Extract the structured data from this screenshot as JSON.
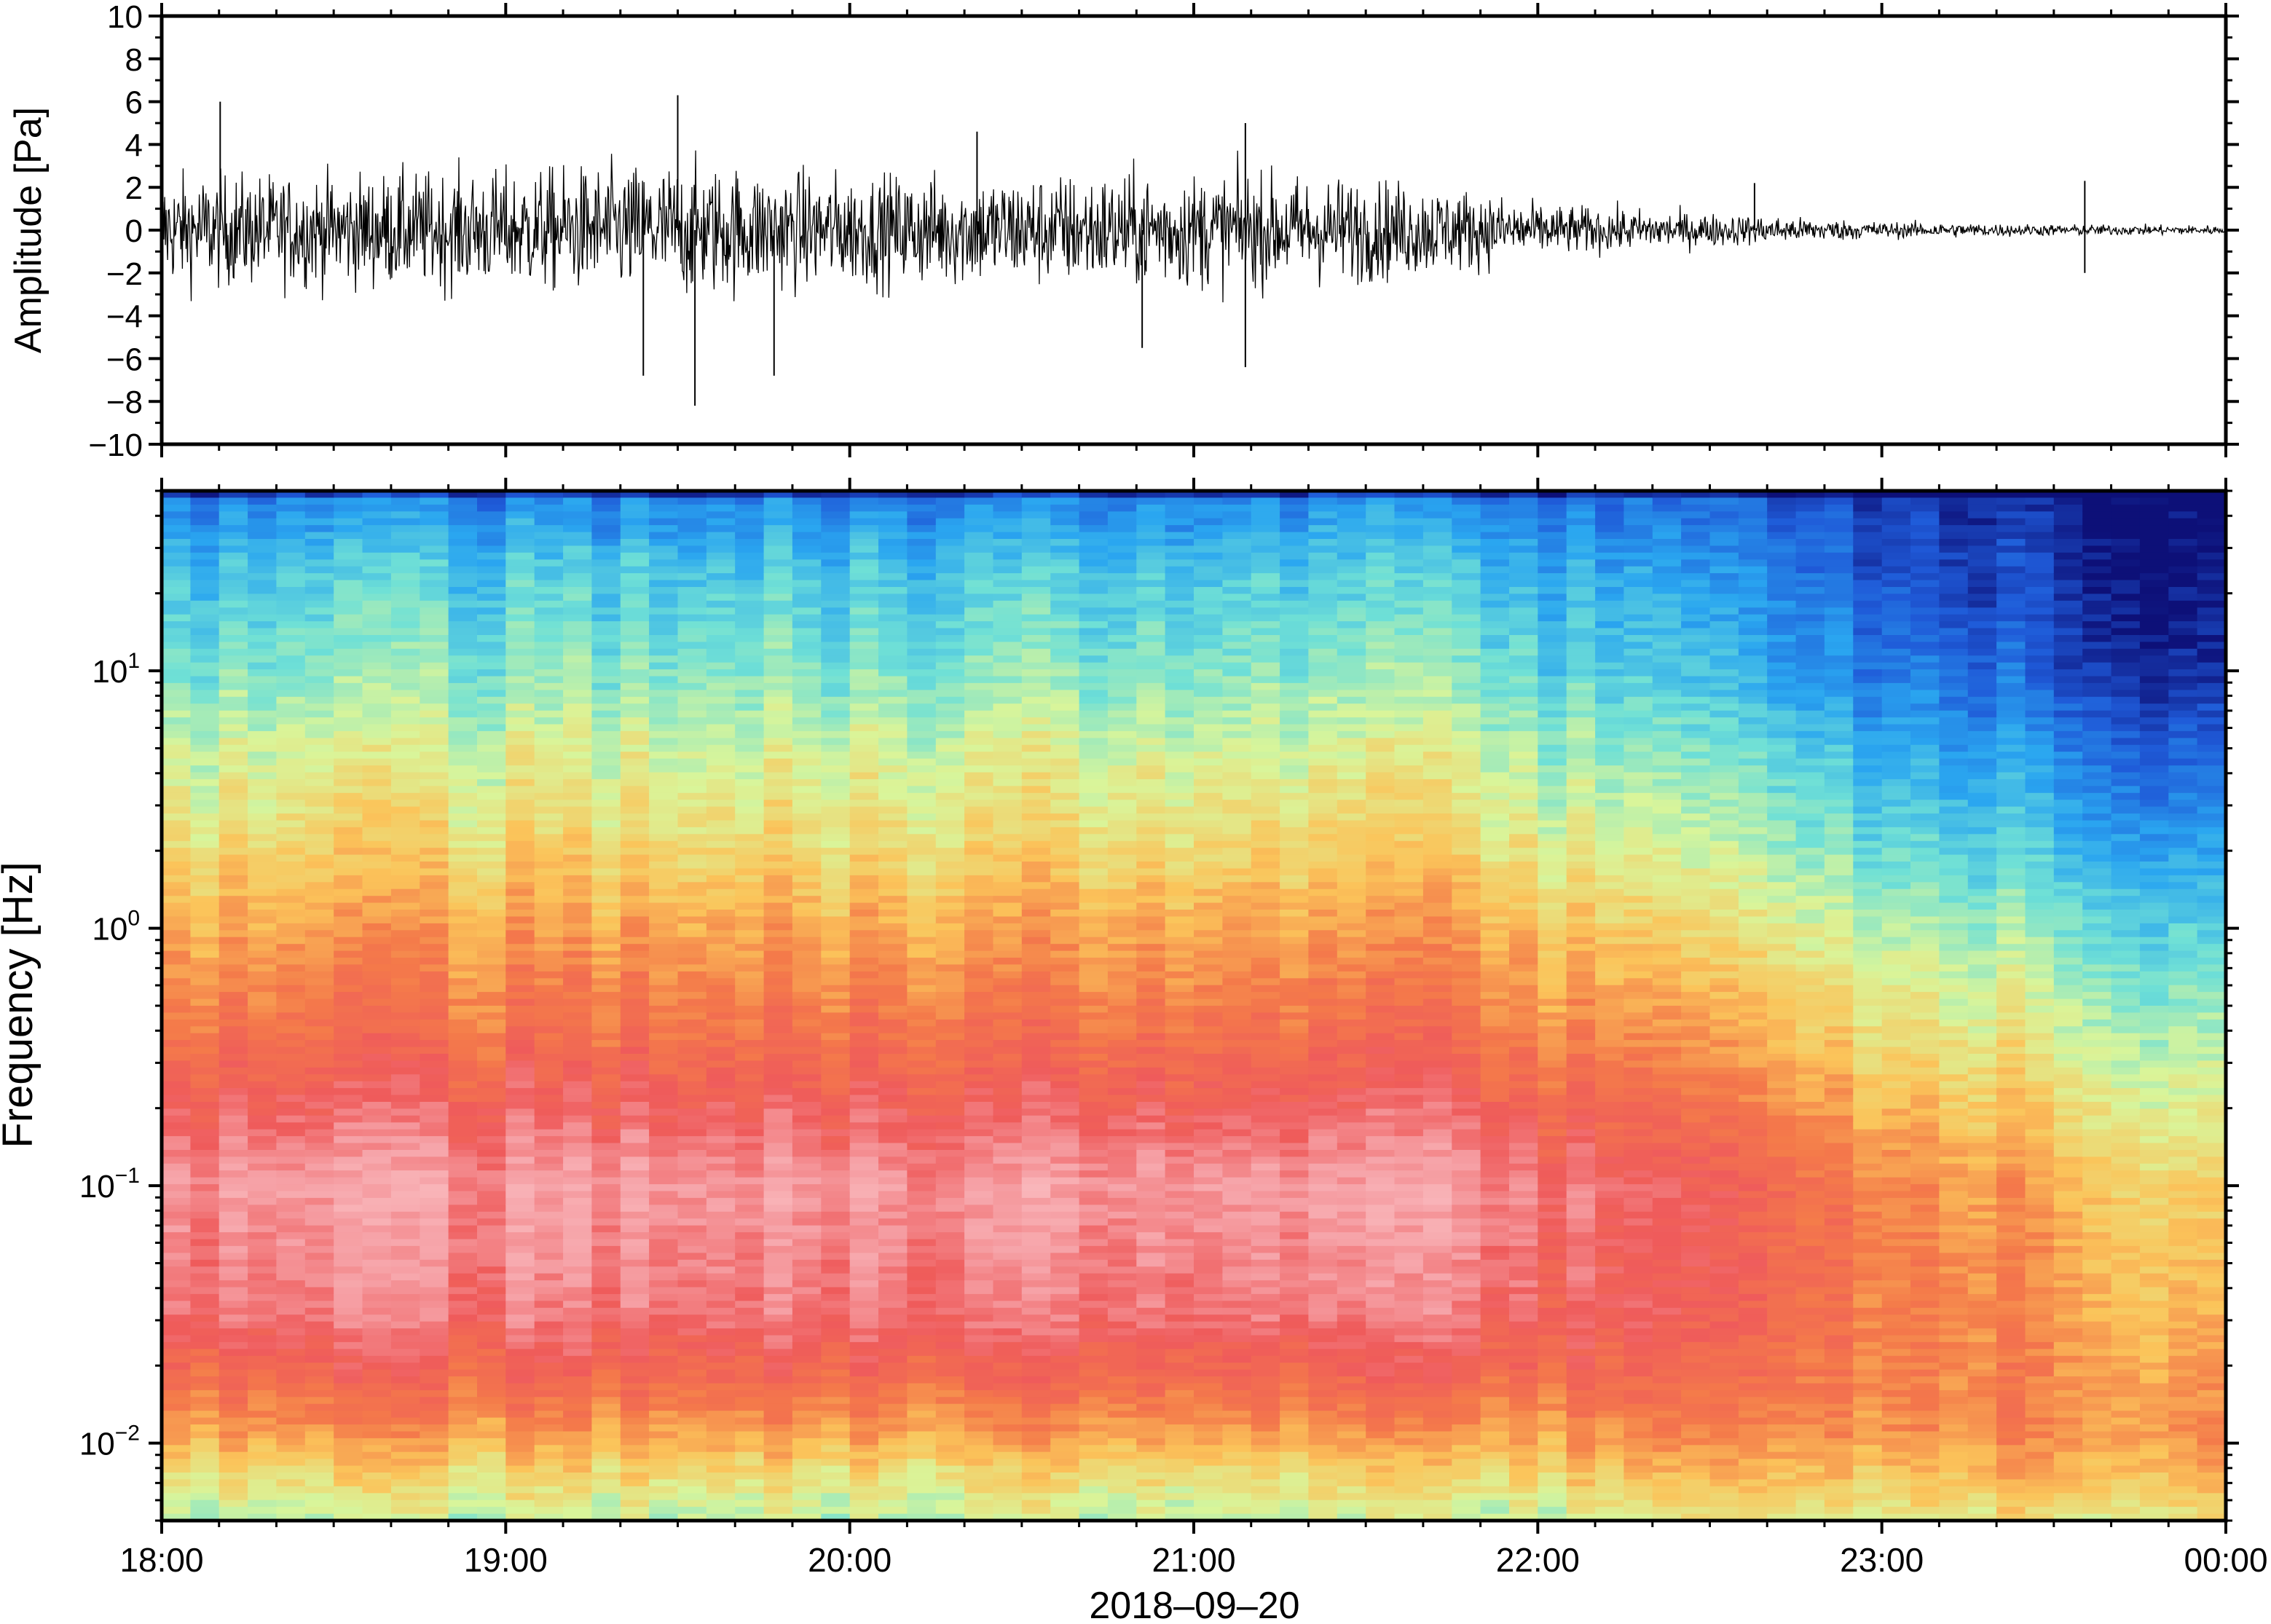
{
  "chart_data": [
    {
      "type": "line",
      "description_panel": "waveform",
      "ylabel": "Amplitude [Pa]",
      "ylim": [
        -10,
        10
      ],
      "y_ticks": [
        -10,
        -8,
        -6,
        -4,
        -2,
        0,
        2,
        4,
        6,
        8,
        10
      ],
      "y_tick_labels": [
        "−10",
        "−8",
        "−6",
        "−4",
        "−2",
        "0",
        "2",
        "4",
        "6",
        "8",
        "10"
      ],
      "x_range_hours": [
        18,
        24
      ],
      "envelope": {
        "time_hours": [
          18.0,
          18.5,
          19.0,
          19.5,
          20.0,
          20.5,
          21.0,
          21.5,
          21.8,
          22.0,
          22.5,
          23.0,
          23.5,
          24.0
        ],
        "amplitude_pa": [
          3.0,
          3.0,
          3.2,
          3.6,
          3.0,
          3.0,
          3.1,
          2.8,
          2.2,
          1.4,
          0.9,
          0.45,
          0.3,
          0.25
        ]
      },
      "peaks": [
        {
          "time_hours": 18.17,
          "value": 6.0
        },
        {
          "time_hours": 19.5,
          "value": 6.3
        },
        {
          "time_hours": 19.55,
          "value": -8.2
        },
        {
          "time_hours": 19.4,
          "value": -6.8
        },
        {
          "time_hours": 19.78,
          "value": -6.8
        },
        {
          "time_hours": 20.37,
          "value": 4.6
        },
        {
          "time_hours": 21.15,
          "value": 5.0
        },
        {
          "time_hours": 21.15,
          "value": -6.4
        },
        {
          "time_hours": 20.85,
          "value": -5.5
        },
        {
          "time_hours": 22.63,
          "value": 2.2
        },
        {
          "time_hours": 23.59,
          "value": 2.3
        },
        {
          "time_hours": 23.59,
          "value": -2.0
        }
      ]
    },
    {
      "type": "heatmap",
      "description_panel": "spectrogram",
      "ylabel": "Frequency [Hz]",
      "xlabel": "2018–09–20",
      "y_scale": "log",
      "y_range_hz": [
        0.005,
        50
      ],
      "y_ticks": [
        {
          "value": 0.01,
          "base": "10",
          "exp": "−2"
        },
        {
          "value": 0.1,
          "base": "10",
          "exp": "−1"
        },
        {
          "value": 1,
          "base": "10",
          "exp": "0"
        },
        {
          "value": 10,
          "base": "10",
          "exp": "1"
        }
      ],
      "x_range_hours": [
        18,
        24
      ],
      "x_ticks": [
        {
          "value": 18,
          "label": "18:00"
        },
        {
          "value": 19,
          "label": "19:00"
        },
        {
          "value": 20,
          "label": "20:00"
        },
        {
          "value": 21,
          "label": "21:00"
        },
        {
          "value": 22,
          "label": "22:00"
        },
        {
          "value": 23,
          "label": "23:00"
        },
        {
          "value": 24,
          "label": "00:00"
        }
      ],
      "columns": 72,
      "colormap": [
        "#0d1078",
        "#1f5ad8",
        "#2aa6f0",
        "#6fe0d6",
        "#d9f59a",
        "#fbc45a",
        "#f47a4a",
        "#ef5b5b",
        "#f6a3a8",
        "#fcc6c9"
      ],
      "power_profile_levels": "0 = low (dark blue) to 1 = high (light pink)",
      "profile_before_22h": {
        "log10_freq": [
          -2.3,
          -2.1,
          -1.95,
          -1.75,
          -1.5,
          -1.0,
          -0.5,
          0.0,
          0.3,
          0.7,
          1.0,
          1.4,
          1.7
        ],
        "level": [
          0.42,
          0.52,
          0.62,
          0.72,
          0.82,
          0.88,
          0.72,
          0.6,
          0.52,
          0.44,
          0.36,
          0.28,
          0.16
        ]
      },
      "profile_at_24h": {
        "log10_freq": [
          -2.3,
          -2.1,
          -1.95,
          -1.75,
          -1.5,
          -1.0,
          -0.5,
          0.0,
          0.3,
          0.7,
          1.0,
          1.4,
          1.7
        ],
        "level": [
          0.5,
          0.6,
          0.64,
          0.62,
          0.58,
          0.52,
          0.42,
          0.3,
          0.22,
          0.12,
          0.04,
          0.0,
          0.0
        ]
      }
    }
  ]
}
